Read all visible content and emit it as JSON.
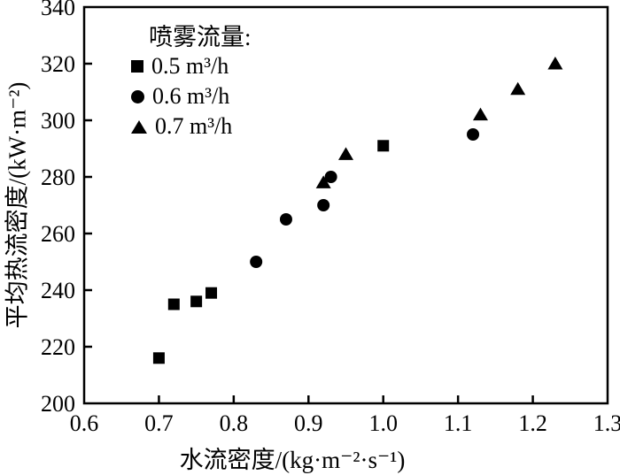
{
  "chart_data": {
    "type": "scatter",
    "title": "",
    "xlabel": "水流密度/(kg·m⁻²·s⁻¹)",
    "ylabel": "平均热流密度/(kW·m⁻²)",
    "xlim": [
      0.6,
      1.3
    ],
    "ylim": [
      200,
      340
    ],
    "xticks": [
      0.6,
      0.7,
      0.8,
      0.9,
      1.0,
      1.1,
      1.2,
      1.3
    ],
    "xtick_labels": [
      "0.6",
      "0.7",
      "0.8",
      "0.9",
      "1.0",
      "1.1",
      "1.2",
      "1.3"
    ],
    "yticks": [
      200,
      220,
      240,
      260,
      280,
      300,
      320,
      340
    ],
    "ytick_labels": [
      "200",
      "220",
      "240",
      "260",
      "280",
      "300",
      "320",
      "340"
    ],
    "grid": false,
    "legend_position": "top-left-inside",
    "legend_title": "喷雾流量:",
    "marker_color": "#000000",
    "series": [
      {
        "name": "0.5 m³/h",
        "marker": "square",
        "points": [
          [
            0.7,
            216
          ],
          [
            0.72,
            235
          ],
          [
            0.75,
            236
          ],
          [
            0.77,
            239
          ],
          [
            1.0,
            291
          ]
        ]
      },
      {
        "name": "0.6 m³/h",
        "marker": "circle",
        "points": [
          [
            0.83,
            250
          ],
          [
            0.87,
            265
          ],
          [
            0.92,
            270
          ],
          [
            0.93,
            280
          ],
          [
            1.12,
            295
          ]
        ]
      },
      {
        "name": "0.7 m³/h",
        "marker": "triangle",
        "points": [
          [
            0.92,
            278
          ],
          [
            0.95,
            288
          ],
          [
            1.13,
            302
          ],
          [
            1.18,
            311
          ],
          [
            1.23,
            320
          ]
        ]
      }
    ]
  }
}
